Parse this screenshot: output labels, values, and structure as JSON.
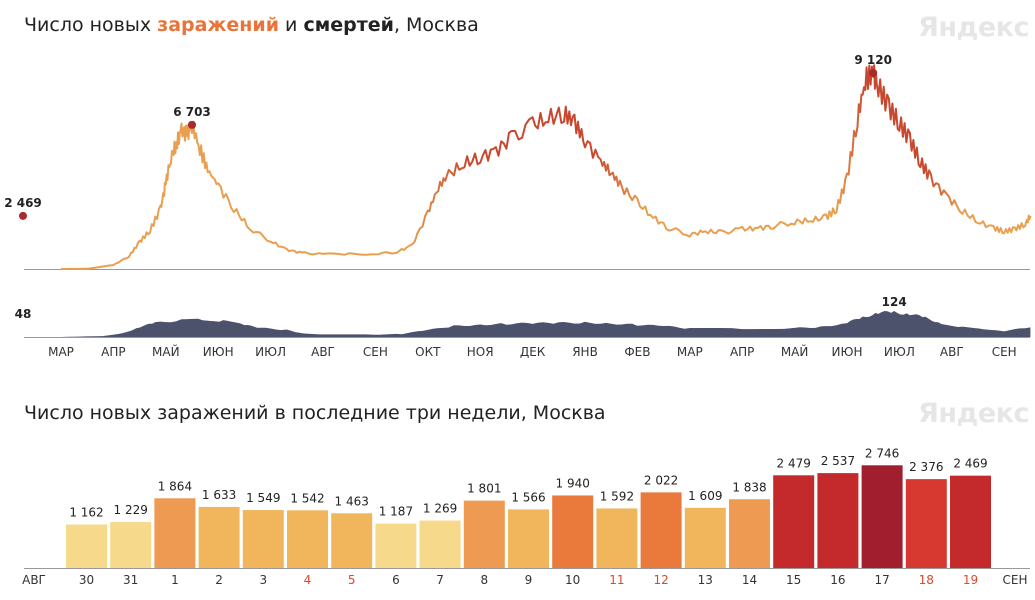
{
  "header": {
    "title_a": "Число новых ",
    "title_infections": "заражений",
    "title_b": " и ",
    "title_deaths": "смертей",
    "title_c": ", Москва",
    "brand": "Яндекс"
  },
  "bars_header": {
    "title": "Число новых заражений в последние три недели, Москва",
    "brand": "Яндекс"
  },
  "colors": {
    "infection_line": "#e8a050",
    "infection_peak": "#c8482f",
    "death_area": "#3d4260",
    "marker": "#a92a2f",
    "axis": "#999999",
    "weekend_tick": "#d94a2b"
  },
  "chart_data": [
    {
      "type": "line",
      "title": "Число новых заражений и смертей, Москва",
      "x_ticks": [
        "МАР",
        "АПР",
        "МАЙ",
        "ИЮН",
        "ИЮЛ",
        "АВГ",
        "СЕН",
        "ОКТ",
        "НОЯ",
        "ДЕК",
        "ЯНВ",
        "ФЕВ",
        "МАР",
        "АПР",
        "МАЙ",
        "ИЮН",
        "ИЮЛ",
        "АВГ",
        "СЕН"
      ],
      "series": [
        {
          "key": "infections",
          "points": [
            [
              0,
              0
            ],
            [
              0.5,
              10
            ],
            [
              1,
              180
            ],
            [
              1.3,
              600
            ],
            [
              1.5,
              1250
            ],
            [
              1.7,
              1800
            ],
            [
              1.9,
              2800
            ],
            [
              2,
              4000
            ],
            [
              2.1,
              5200
            ],
            [
              2.2,
              5800
            ],
            [
              2.3,
              6400
            ],
            [
              2.4,
              6300
            ],
            [
              2.5,
              6703
            ],
            [
              2.65,
              5600
            ],
            [
              2.8,
              4600
            ],
            [
              3,
              3900
            ],
            [
              3.3,
              2800
            ],
            [
              3.6,
              1900
            ],
            [
              4,
              1300
            ],
            [
              4.3,
              900
            ],
            [
              4.6,
              750
            ],
            [
              5,
              680
            ],
            [
              5.5,
              700
            ],
            [
              6,
              710
            ],
            [
              6.4,
              780
            ],
            [
              6.7,
              1100
            ],
            [
              7,
              2600
            ],
            [
              7.2,
              3800
            ],
            [
              7.4,
              4400
            ],
            [
              7.7,
              4900
            ],
            [
              8,
              5200
            ],
            [
              8.3,
              5500
            ],
            [
              8.6,
              6100
            ],
            [
              9,
              6700
            ],
            [
              9.3,
              7000
            ],
            [
              9.6,
              7250
            ],
            [
              9.8,
              6800
            ],
            [
              10,
              6000
            ],
            [
              10.3,
              5000
            ],
            [
              10.5,
              4500
            ],
            [
              10.7,
              3800
            ],
            [
              11,
              3100
            ],
            [
              11.3,
              2400
            ],
            [
              11.6,
              1900
            ],
            [
              12,
              1600
            ],
            [
              12.3,
              1750
            ],
            [
              12.6,
              1700
            ],
            [
              13,
              1850
            ],
            [
              13.3,
              1900
            ],
            [
              13.6,
              2000
            ],
            [
              14,
              2200
            ],
            [
              14.3,
              2250
            ],
            [
              14.6,
              2400
            ],
            [
              14.8,
              2800
            ],
            [
              15,
              4200
            ],
            [
              15.2,
              7000
            ],
            [
              15.35,
              8800
            ],
            [
              15.5,
              9120
            ],
            [
              15.6,
              8500
            ],
            [
              15.8,
              7500
            ],
            [
              16,
              6800
            ],
            [
              16.2,
              6000
            ],
            [
              16.4,
              5000
            ],
            [
              16.6,
              4200
            ],
            [
              16.9,
              3400
            ],
            [
              17.2,
              2700
            ],
            [
              17.5,
              2200
            ],
            [
              17.8,
              1900
            ],
            [
              18,
              1750
            ],
            [
              18.2,
              1850
            ],
            [
              18.4,
              2100
            ],
            [
              18.5,
              2469
            ]
          ],
          "labels": [
            {
              "x": 2.5,
              "y": 6703,
              "text": "6 703"
            },
            {
              "x": 15.5,
              "y": 9120,
              "text": "9 120"
            }
          ],
          "start_value": 2469,
          "start_label": "2 469"
        },
        {
          "key": "deaths",
          "points": [
            [
              0,
              0
            ],
            [
              0.8,
              5
            ],
            [
              1.2,
              20
            ],
            [
              1.5,
              50
            ],
            [
              1.8,
              70
            ],
            [
              2.3,
              85
            ],
            [
              2.7,
              90
            ],
            [
              3.1,
              80
            ],
            [
              3.5,
              60
            ],
            [
              3.8,
              45
            ],
            [
              4.3,
              35
            ],
            [
              4.6,
              20
            ],
            [
              5,
              12
            ],
            [
              6,
              12
            ],
            [
              6.5,
              15
            ],
            [
              7,
              35
            ],
            [
              7.5,
              55
            ],
            [
              8,
              62
            ],
            [
              8.5,
              66
            ],
            [
              9,
              68
            ],
            [
              9.5,
              70
            ],
            [
              10,
              72
            ],
            [
              10.5,
              68
            ],
            [
              11,
              60
            ],
            [
              11.5,
              55
            ],
            [
              12,
              42
            ],
            [
              13,
              42
            ],
            [
              14,
              44
            ],
            [
              14.5,
              50
            ],
            [
              15,
              70
            ],
            [
              15.3,
              100
            ],
            [
              15.6,
              120
            ],
            [
              15.9,
              124
            ],
            [
              16.2,
              115
            ],
            [
              16.5,
              95
            ],
            [
              16.8,
              70
            ],
            [
              17.2,
              50
            ],
            [
              17.6,
              38
            ],
            [
              18,
              30
            ],
            [
              18.5,
              48
            ]
          ],
          "labels": [
            {
              "x": 15.9,
              "y": 124,
              "text": "124"
            }
          ],
          "start_value": 48,
          "start_label": "48"
        }
      ]
    },
    {
      "type": "bar",
      "title": "Число новых заражений в последние три недели, Москва",
      "x_start_label": "АВГ",
      "x_end_label": "СЕН",
      "categories": [
        "30",
        "31",
        "1",
        "2",
        "3",
        "4",
        "5",
        "6",
        "7",
        "8",
        "9",
        "10",
        "11",
        "12",
        "13",
        "14",
        "15",
        "16",
        "17",
        "18",
        "19"
      ],
      "values": [
        1162,
        1229,
        1864,
        1633,
        1549,
        1542,
        1463,
        1187,
        1269,
        1801,
        1566,
        1940,
        1592,
        2022,
        1609,
        1838,
        2479,
        2537,
        2746,
        2376,
        2469
      ],
      "value_labels": [
        "1 162",
        "1 229",
        "1 864",
        "1 633",
        "1 549",
        "1 542",
        "1 463",
        "1 187",
        "1 269",
        "1 801",
        "1 566",
        "1 940",
        "1 592",
        "2 022",
        "1 609",
        "1 838",
        "2 479",
        "2 537",
        "2 746",
        "2 376",
        "2 469"
      ],
      "bar_colors": [
        "#f6d98a",
        "#f6d98a",
        "#ee9a52",
        "#f1b55c",
        "#f1b55c",
        "#f1b55c",
        "#f1b55c",
        "#f6d98a",
        "#f6d98a",
        "#ee9a52",
        "#f1b55c",
        "#ea7a3c",
        "#f1b55c",
        "#ea7a3c",
        "#f1b55c",
        "#ee9a52",
        "#c42a2c",
        "#c42a2c",
        "#a11e2e",
        "#d7382f",
        "#c42a2c"
      ],
      "weekend": [
        false,
        false,
        false,
        false,
        false,
        true,
        true,
        false,
        false,
        false,
        false,
        false,
        true,
        true,
        false,
        false,
        false,
        false,
        false,
        true,
        true
      ]
    }
  ]
}
